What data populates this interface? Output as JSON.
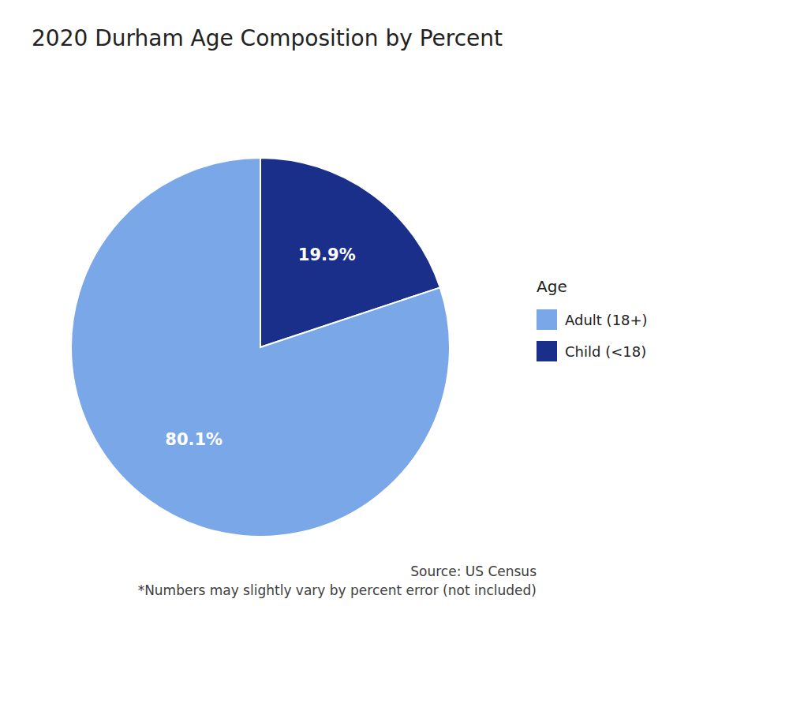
{
  "chart_data": {
    "type": "pie",
    "title": "2020 Durham Age Composition by Percent",
    "categories": [
      "Child (<18)",
      "Adult (18+)"
    ],
    "values": [
      19.9,
      80.1
    ],
    "value_labels": [
      "19.9%",
      "80.1%"
    ],
    "colors": [
      "#1a2f8a",
      "#7aa7e8"
    ],
    "data_labels": true,
    "legend": "right",
    "legend_title": "Age",
    "annotations": [
      "Source: US Census",
      "*Numbers may slightly vary by percent error (not included)"
    ]
  }
}
